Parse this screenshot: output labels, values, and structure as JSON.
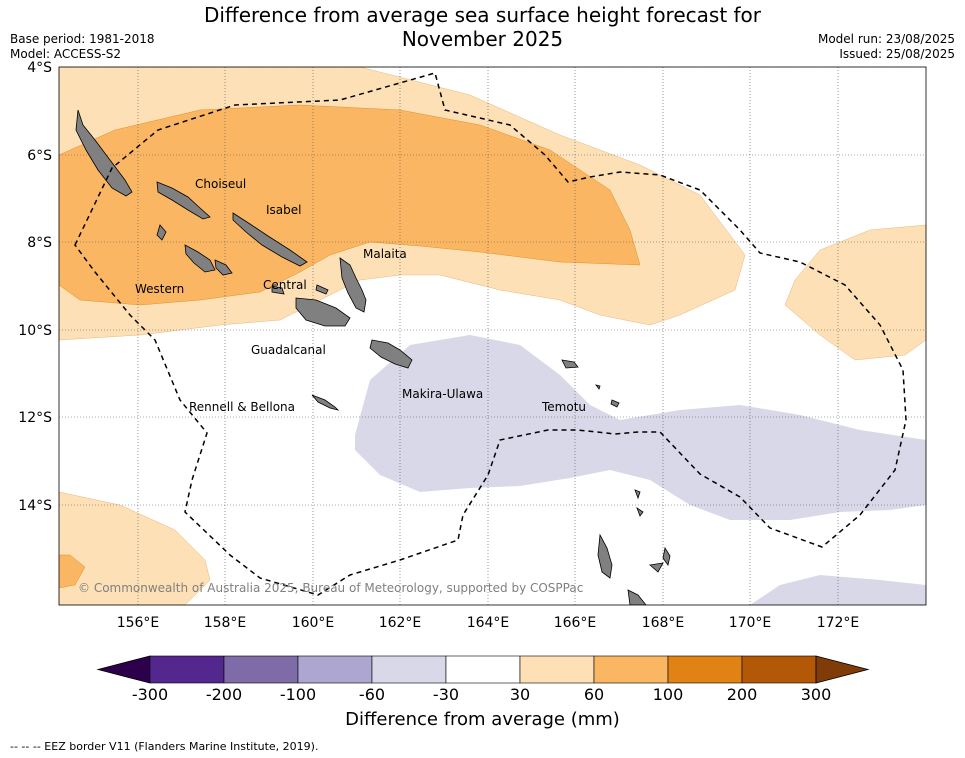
{
  "title_line1": "Difference from average sea surface height forecast for",
  "title_line2": "November 2025",
  "base_period": "Base period: 1981-2018",
  "model": "Model: ACCESS-S2",
  "model_run": "Model run: 23/08/2025",
  "issued": "Issued: 25/08/2025",
  "copyright": "© Commonwealth of Australia 2025, Bureau of Meteorology, supported by COSPPac",
  "eez_note": "--  --  -- EEZ border V11 (Flanders Marine Institute, 2019).",
  "colorbar": {
    "title": "Difference from average (mm)",
    "ticks": [
      "-300",
      "-200",
      "-100",
      "-60",
      "-30",
      "30",
      "60",
      "100",
      "200",
      "300"
    ],
    "colors": [
      "#54278f",
      "#7e6ba8",
      "#aca6d0",
      "#d8d8e8",
      "#ffffff",
      "#fde0b5",
      "#fab662",
      "#e08214",
      "#b35806"
    ],
    "under_color": "#2d004b",
    "over_color": "#7f3b08"
  },
  "lat_labels": [
    "4°S",
    "6°S",
    "8°S",
    "10°S",
    "12°S",
    "14°S"
  ],
  "lon_labels": [
    "156°E",
    "158°E",
    "160°E",
    "162°E",
    "164°E",
    "166°E",
    "168°E",
    "170°E",
    "172°E"
  ],
  "provinces": [
    {
      "name": "Choiseul",
      "lon": 157.3,
      "lat": -6.7
    },
    {
      "name": "Isabel",
      "lon": 159.0,
      "lat": -7.3
    },
    {
      "name": "Malaita",
      "lon": 161.0,
      "lat": -8.2
    },
    {
      "name": "Western",
      "lon": 156.5,
      "lat": -9.1
    },
    {
      "name": "Central",
      "lon": 159.1,
      "lat": -9.0
    },
    {
      "name": "Guadalcanal",
      "lon": 159.8,
      "lat": -10.5
    },
    {
      "name": "Rennell & Bellona",
      "lon": 158.4,
      "lat": -11.8
    },
    {
      "name": "Makira-Ulawa",
      "lon": 162.9,
      "lat": -11.5
    },
    {
      "name": "Temotu",
      "lon": 165.8,
      "lat": -11.8
    }
  ]
}
